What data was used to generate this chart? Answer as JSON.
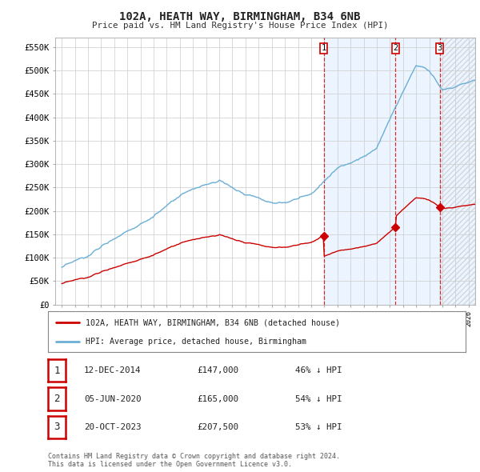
{
  "title": "102A, HEATH WAY, BIRMINGHAM, B34 6NB",
  "subtitle": "Price paid vs. HM Land Registry's House Price Index (HPI)",
  "ylabel_ticks": [
    "£0",
    "£50K",
    "£100K",
    "£150K",
    "£200K",
    "£250K",
    "£300K",
    "£350K",
    "£400K",
    "£450K",
    "£500K",
    "£550K"
  ],
  "ytick_vals": [
    0,
    50000,
    100000,
    150000,
    200000,
    250000,
    300000,
    350000,
    400000,
    450000,
    500000,
    550000
  ],
  "xlim": [
    1994.5,
    2026.5
  ],
  "ylim": [
    0,
    570000
  ],
  "sale_dates": [
    2014.95,
    2020.43,
    2023.8
  ],
  "sale_prices": [
    147000,
    165000,
    207500
  ],
  "sale_labels": [
    "1",
    "2",
    "3"
  ],
  "legend_red": "102A, HEATH WAY, BIRMINGHAM, B34 6NB (detached house)",
  "legend_blue": "HPI: Average price, detached house, Birmingham",
  "table": [
    {
      "num": "1",
      "date": "12-DEC-2014",
      "price": "£147,000",
      "pct": "46% ↓ HPI"
    },
    {
      "num": "2",
      "date": "05-JUN-2020",
      "price": "£165,000",
      "pct": "54% ↓ HPI"
    },
    {
      "num": "3",
      "date": "20-OCT-2023",
      "price": "£207,500",
      "pct": "53% ↓ HPI"
    }
  ],
  "footer": "Contains HM Land Registry data © Crown copyright and database right 2024.\nThis data is licensed under the Open Government Licence v3.0.",
  "hpi_color": "#6baed6",
  "sale_color": "#cc0000",
  "bg_color": "#ffffff",
  "plot_bg": "#ffffff",
  "grid_color": "#cccccc",
  "vline_color": "#cc0000",
  "shade_color": "#ddeeff"
}
